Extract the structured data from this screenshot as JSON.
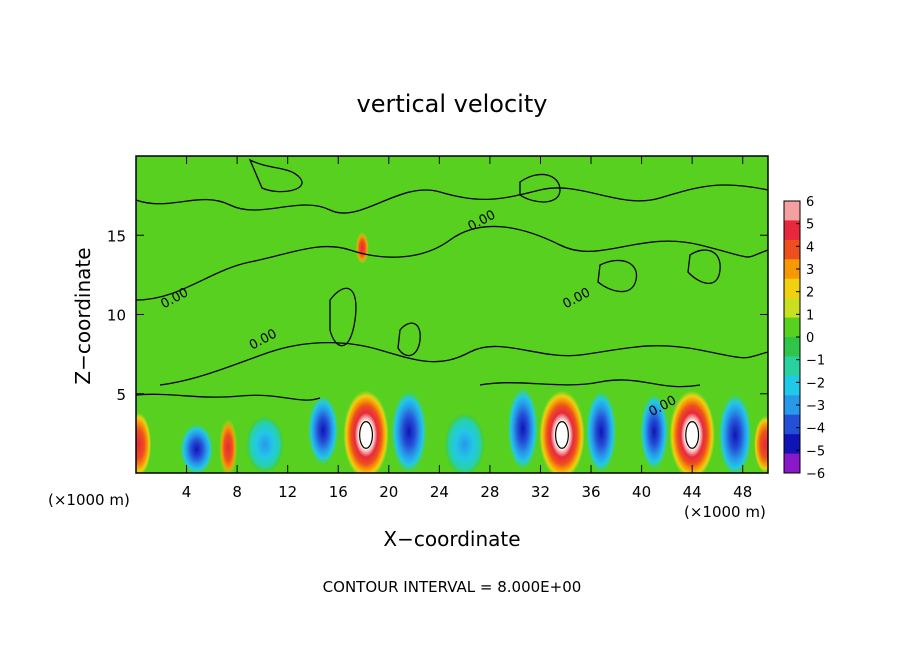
{
  "chart_data": {
    "type": "heatmap",
    "title": "vertical velocity",
    "xlabel": "X−coordinate",
    "ylabel": "Z−coordinate",
    "x_unit_left": "(×1000 m)",
    "x_unit_right": "(×1000 m)",
    "footer": "CONTOUR INTERVAL = 8.000E+00",
    "xlim": [
      0,
      50
    ],
    "ylim": [
      0,
      20
    ],
    "x_ticks": [
      4,
      8,
      12,
      16,
      20,
      24,
      28,
      32,
      36,
      40,
      44,
      48
    ],
    "y_ticks": [
      5,
      10,
      15
    ],
    "contour_labels": [
      {
        "text": "0.00",
        "x": 27.5,
        "y": 15.7
      },
      {
        "text": "0.00",
        "x": 3.2,
        "y": 10.8
      },
      {
        "text": "0.00",
        "x": 10.2,
        "y": 8.2
      },
      {
        "text": "0.00",
        "x": 35.0,
        "y": 10.8
      },
      {
        "text": "0.00",
        "x": 41.8,
        "y": 4.0
      }
    ],
    "colorbar": {
      "ticks": [
        "6",
        "5",
        "4",
        "3",
        "2",
        "1",
        "0",
        "−1",
        "−2",
        "−3",
        "−4",
        "−5",
        "−6"
      ],
      "colors": [
        "#f4a0a0",
        "#e8283c",
        "#ee4f1e",
        "#f59a06",
        "#f0d010",
        "#c8e020",
        "#58d020",
        "#30c448",
        "#28d2a0",
        "#22c8e8",
        "#2898e8",
        "#2450d8",
        "#1014b4",
        "#8818c8"
      ]
    },
    "features": [
      {
        "kind": "updraft",
        "x": 18.2,
        "z": 2.4,
        "rx": 1.8,
        "rz": 2.8
      },
      {
        "kind": "updraft",
        "x": 33.7,
        "z": 2.4,
        "rx": 1.8,
        "rz": 2.8
      },
      {
        "kind": "updraft",
        "x": 44.0,
        "z": 2.4,
        "rx": 1.8,
        "rz": 2.8
      },
      {
        "kind": "updraft_edge",
        "x": 0.2,
        "z": 1.8,
        "rx": 1.0,
        "rz": 2.0
      },
      {
        "kind": "updraft_edge",
        "x": 49.8,
        "z": 1.8,
        "rx": 0.9,
        "rz": 1.8
      },
      {
        "kind": "updraft_small",
        "x": 7.3,
        "z": 1.6,
        "rx": 0.7,
        "rz": 1.8
      },
      {
        "kind": "updraft_small",
        "x": 17.9,
        "z": 14.2,
        "rx": 0.5,
        "rz": 1.0
      },
      {
        "kind": "downdraft",
        "x": 4.8,
        "z": 1.5,
        "rx": 1.3,
        "rz": 1.6
      },
      {
        "kind": "downdraft",
        "x": 14.8,
        "z": 2.7,
        "rx": 1.2,
        "rz": 2.2
      },
      {
        "kind": "downdraft",
        "x": 21.6,
        "z": 2.6,
        "rx": 1.4,
        "rz": 2.6
      },
      {
        "kind": "downdraft",
        "x": 30.6,
        "z": 2.8,
        "rx": 1.2,
        "rz": 2.6
      },
      {
        "kind": "downdraft",
        "x": 36.8,
        "z": 2.6,
        "rx": 1.2,
        "rz": 2.6
      },
      {
        "kind": "downdraft",
        "x": 41.0,
        "z": 2.6,
        "rx": 1.1,
        "rz": 2.4
      },
      {
        "kind": "downdraft",
        "x": 47.4,
        "z": 2.4,
        "rx": 1.3,
        "rz": 2.6
      },
      {
        "kind": "weak_down",
        "x": 10.2,
        "z": 1.8,
        "rx": 1.5,
        "rz": 1.8
      },
      {
        "kind": "weak_down",
        "x": 26.0,
        "z": 1.8,
        "rx": 1.6,
        "rz": 2.0
      }
    ]
  }
}
